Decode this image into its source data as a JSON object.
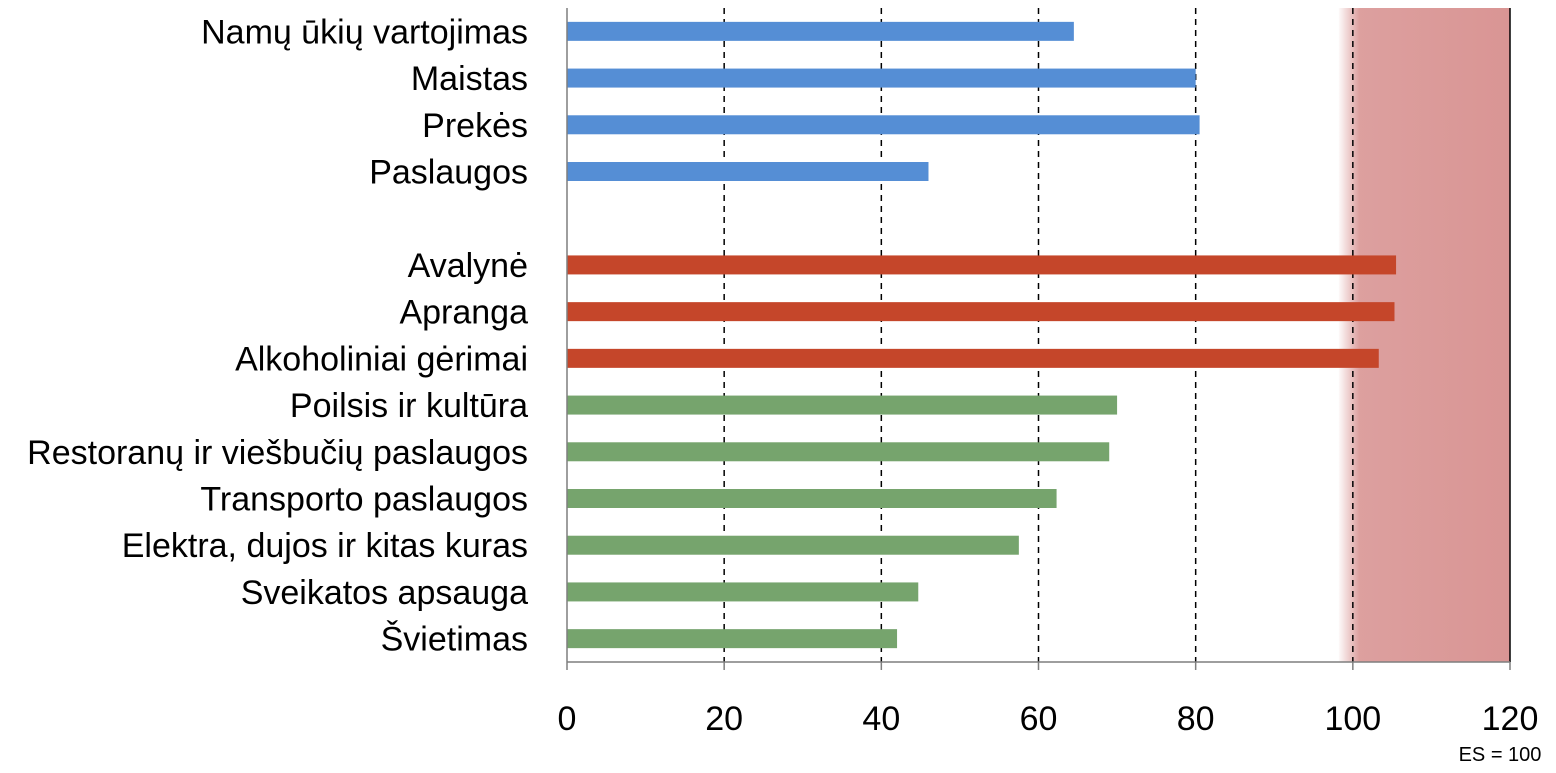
{
  "chart_data": {
    "type": "bar",
    "orientation": "horizontal",
    "categories": [
      "Namų ūkių vartojimas",
      "Maistas",
      "Prekės",
      "Paslaugos",
      "Avalynė",
      "Apranga",
      "Alkoholiniai gėrimai",
      "Poilsis ir kultūra",
      "Restoranų ir viešbučių paslaugos",
      "Transporto paslaugos",
      "Elektra, dujos ir kitas kuras",
      "Sveikatos apsauga",
      "Švietimas"
    ],
    "values": [
      64.5,
      80,
      80.5,
      46,
      105.5,
      105.3,
      103.3,
      70,
      69,
      62.3,
      57.5,
      44.7,
      42
    ],
    "bar_colors": [
      "#558ed5",
      "#558ed5",
      "#558ed5",
      "#558ed5",
      "#c5462a",
      "#c5462a",
      "#c5462a",
      "#76a46d",
      "#76a46d",
      "#76a46d",
      "#76a46d",
      "#76a46d",
      "#76a46d"
    ],
    "xlim": [
      0,
      120
    ],
    "xticks": [
      "0",
      "20",
      "40",
      "60",
      "80",
      "100",
      "120"
    ],
    "grid": "vertical dashed",
    "highlight_region": {
      "from": 100,
      "to": 120,
      "color": "#d99594"
    },
    "note": "ES = 100",
    "title": "",
    "xlabel": "",
    "ylabel": ""
  }
}
